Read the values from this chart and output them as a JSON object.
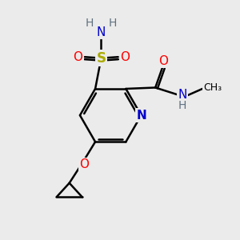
{
  "bg_color": "#ebebeb",
  "atom_colors": {
    "C": "#000000",
    "N": "#0000cc",
    "O": "#ff0000",
    "S": "#aaaa00",
    "H": "#607080"
  },
  "bond_color": "#000000",
  "bond_width": 1.8
}
